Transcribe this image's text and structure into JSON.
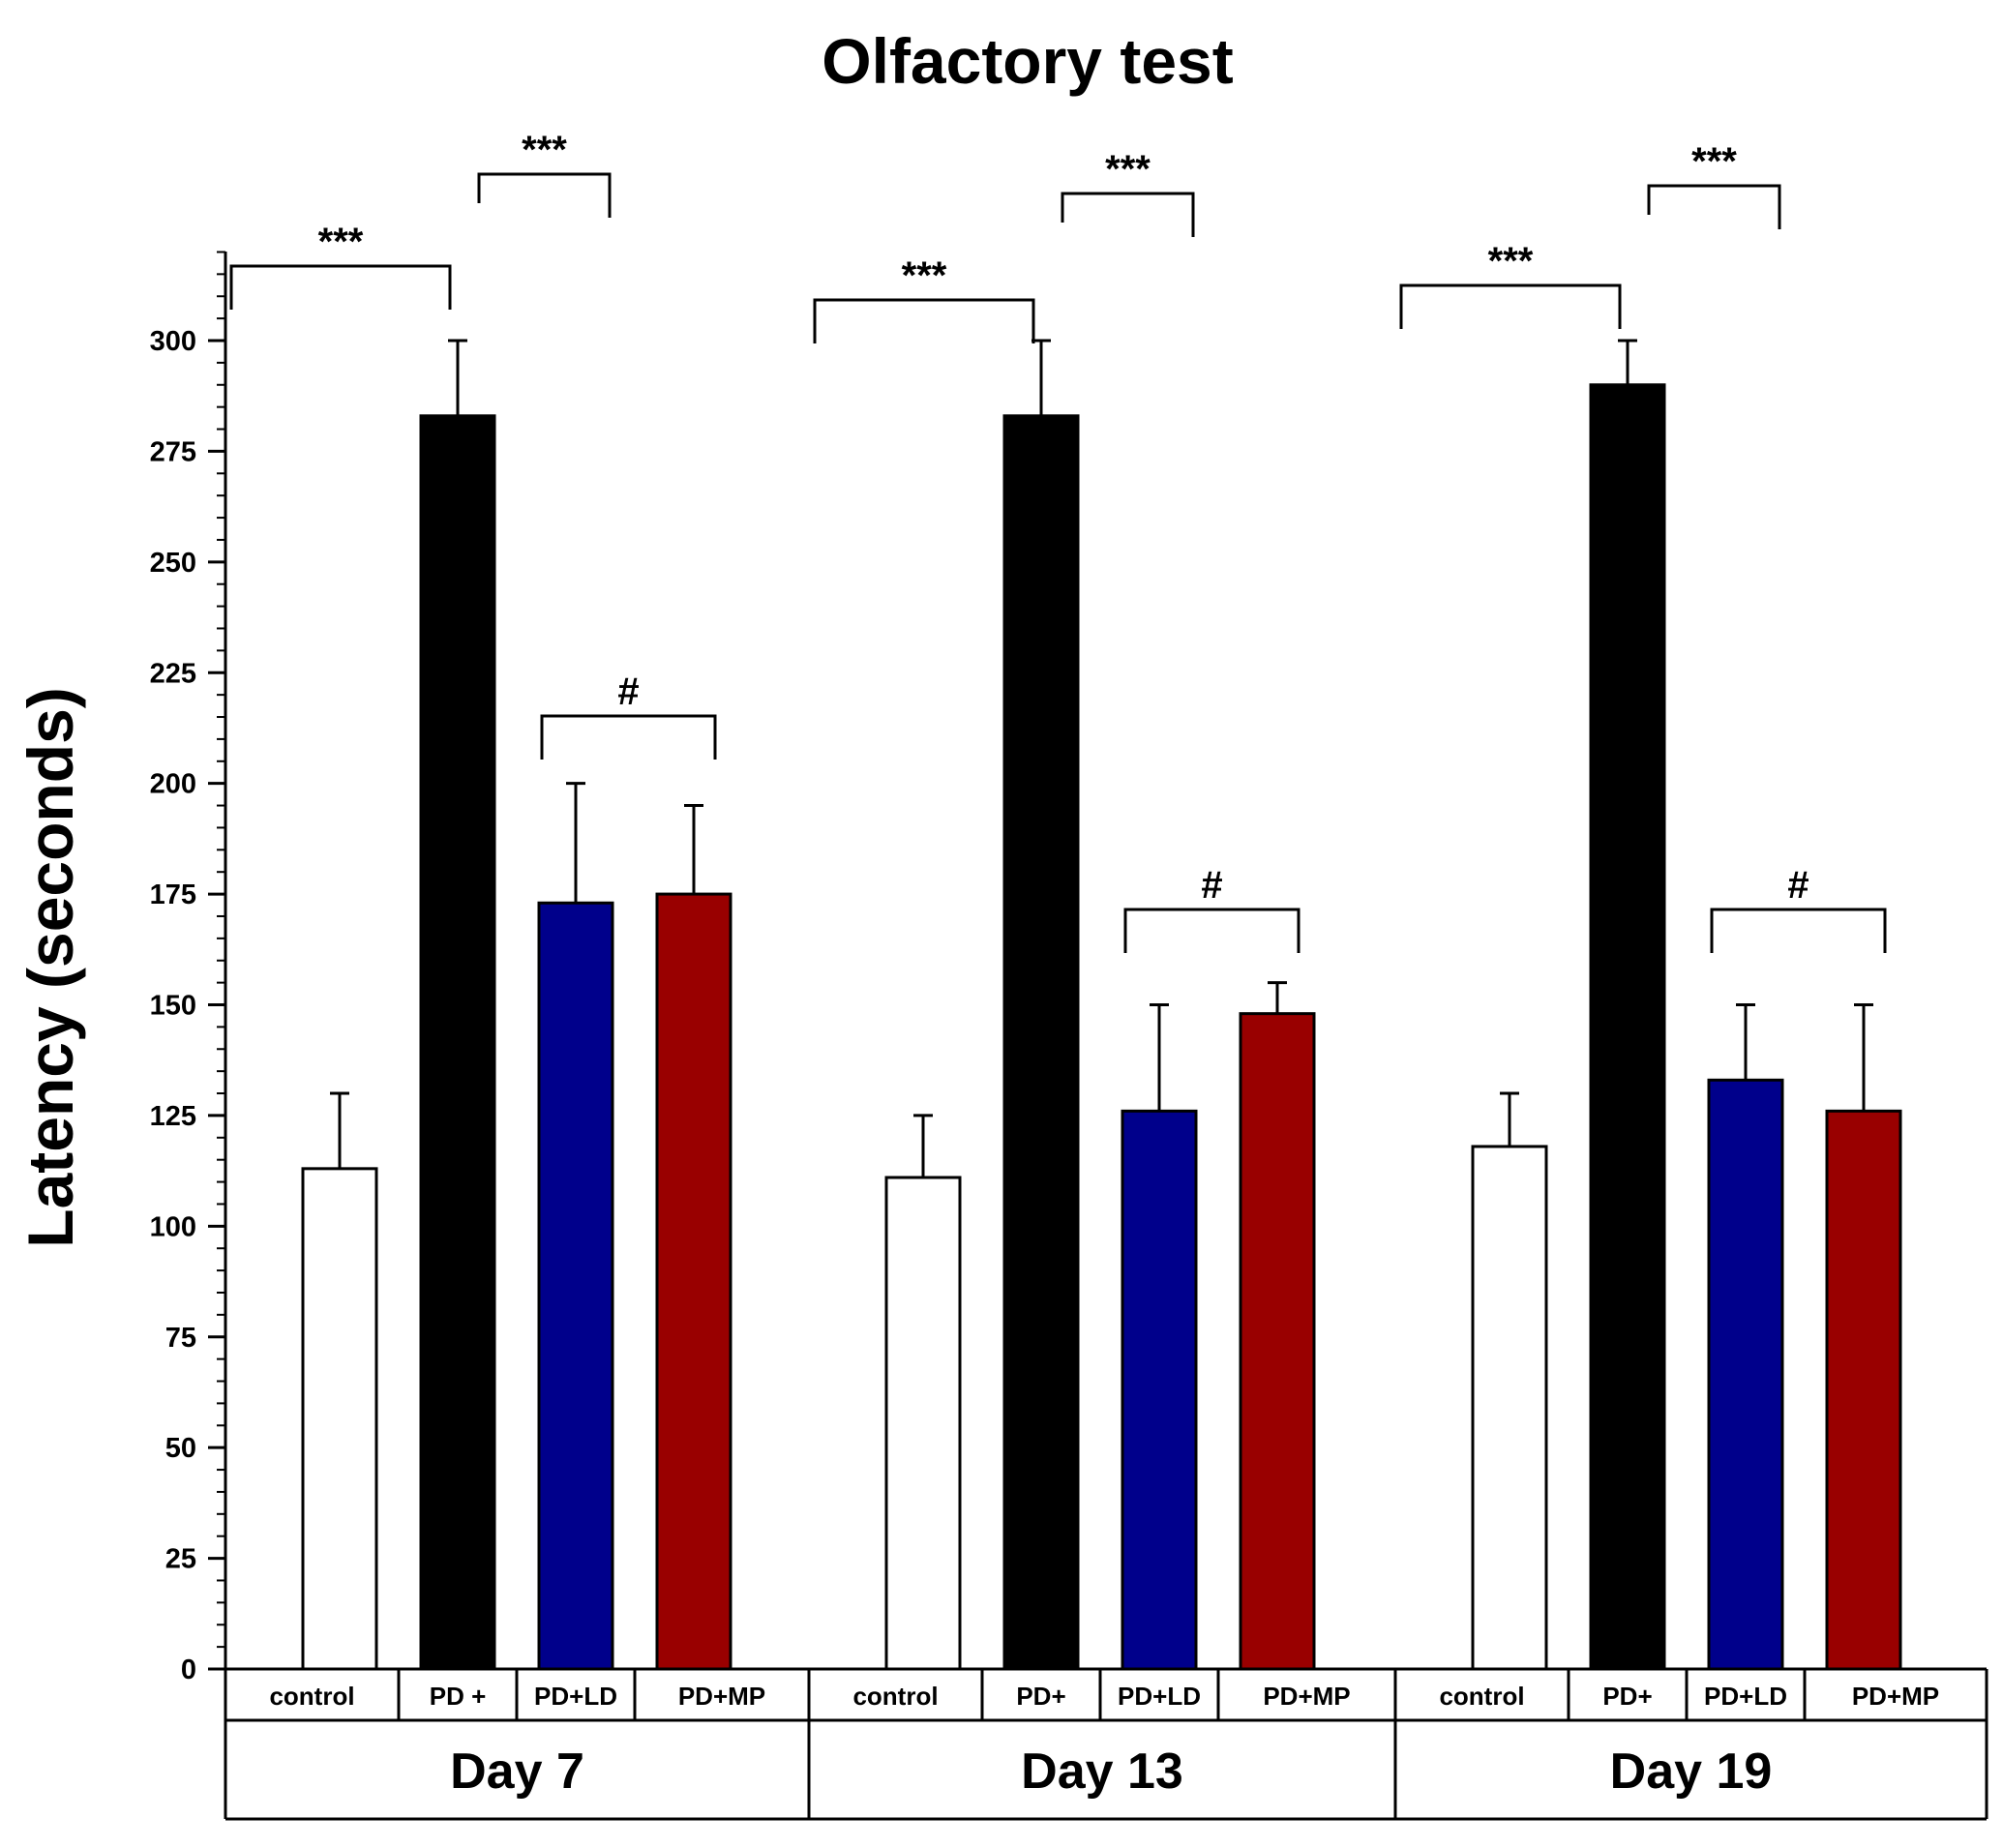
{
  "chart_data": {
    "type": "bar",
    "title": "Olfactory test",
    "ylabel": "Latency (seconds)",
    "ylim": [
      0,
      300
    ],
    "yticks": [
      0,
      25,
      50,
      75,
      100,
      125,
      150,
      175,
      200,
      225,
      250,
      275,
      300
    ],
    "groups": [
      {
        "name": "Day 7",
        "categories": [
          "control",
          "PD +",
          "PD+LD",
          "PD+MP"
        ],
        "values": [
          113,
          283,
          173,
          175
        ],
        "error": [
          17,
          17,
          27,
          20
        ]
      },
      {
        "name": "Day 13",
        "categories": [
          "control",
          "PD+",
          "PD+LD",
          "PD+MP"
        ],
        "values": [
          111,
          283,
          126,
          148
        ],
        "error": [
          14,
          17,
          24,
          7
        ]
      },
      {
        "name": "Day 19",
        "categories": [
          "control",
          "PD+",
          "PD+LD",
          "PD+MP"
        ],
        "values": [
          118,
          290,
          133,
          126
        ],
        "error": [
          12,
          10,
          17,
          24
        ]
      }
    ],
    "bar_colors": [
      "#ffffff",
      "#000000",
      "#00008b",
      "#990000"
    ],
    "significance": [
      {
        "group": 0,
        "from": 0,
        "to": 1,
        "label": "***"
      },
      {
        "group": 0,
        "from": 1,
        "to": 2,
        "label": "***"
      },
      {
        "group": 0,
        "from": 2,
        "to": 3,
        "label": "#"
      },
      {
        "group": 1,
        "from": 0,
        "to": 1,
        "label": "***"
      },
      {
        "group": 1,
        "from": 1,
        "to": 2,
        "label": "***"
      },
      {
        "group": 1,
        "from": 2,
        "to": 3,
        "label": "#"
      },
      {
        "group": 2,
        "from": 0,
        "to": 1,
        "label": "***"
      },
      {
        "group": 2,
        "from": 1,
        "to": 2,
        "label": "***"
      },
      {
        "group": 2,
        "from": 2,
        "to": 3,
        "label": "#"
      }
    ],
    "grid": false,
    "legend": "none"
  }
}
